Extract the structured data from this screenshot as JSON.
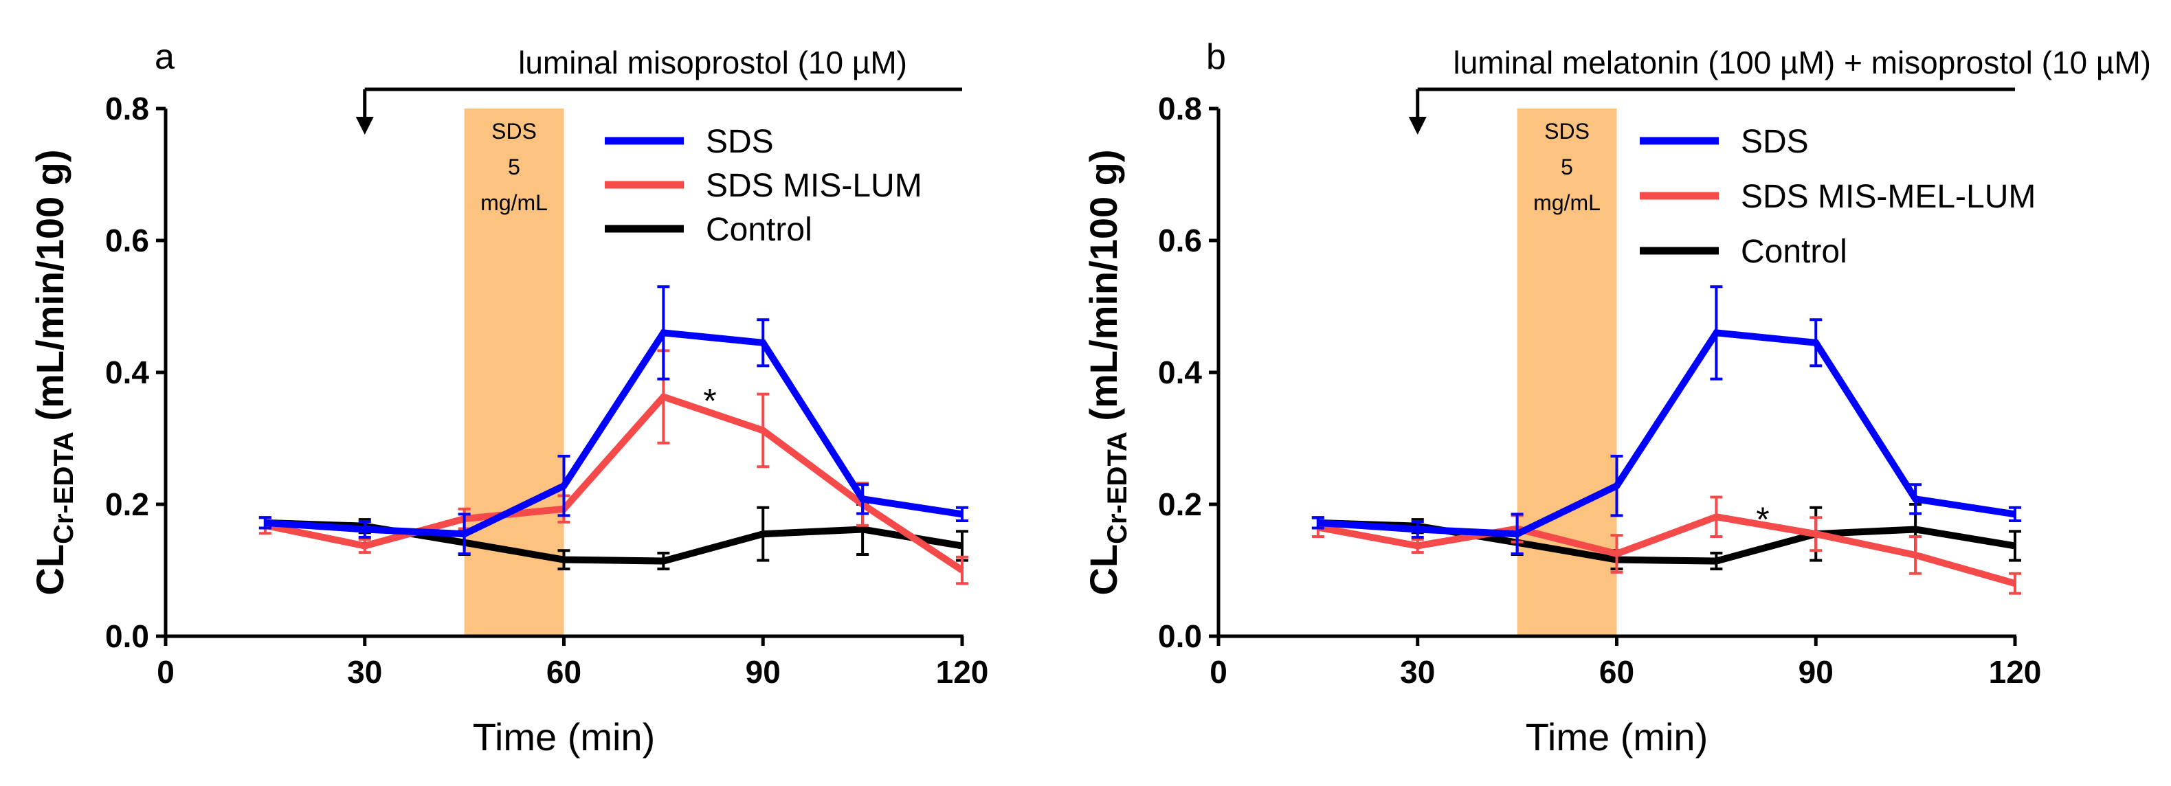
{
  "colors": {
    "sds": "#0000ff",
    "treated": "#f54a4a",
    "control": "#000000",
    "shade": "#fcc27f"
  },
  "chart_data": [
    {
      "type": "line",
      "panel": "a",
      "annotation_arrow": "luminal misoprostol (10 µM)",
      "shaded_label": [
        "SDS",
        "5",
        "mg/mL"
      ],
      "xlabel": "Time (min)",
      "ylabel_main": "CL",
      "ylabel_sub": "Cr-EDTA",
      "ylabel_unit": " (mL/min/100 g)",
      "xlim": [
        0,
        120
      ],
      "ylim": [
        0,
        0.8
      ],
      "xticks": [
        0,
        30,
        60,
        90,
        120
      ],
      "yticks": [
        "0.0",
        "0.2",
        "0.4",
        "0.6",
        "0.8"
      ],
      "x": [
        15,
        30,
        45,
        60,
        75,
        90,
        105,
        120
      ],
      "series": [
        {
          "name": "SDS",
          "color": "#0000ff",
          "values": [
            0.172,
            0.162,
            0.155,
            0.228,
            0.46,
            0.445,
            0.208,
            0.185
          ],
          "errors": [
            0.008,
            0.012,
            0.03,
            0.045,
            0.07,
            0.035,
            0.022,
            0.01
          ]
        },
        {
          "name": "SDS MIS-LUM",
          "color": "#f54a4a",
          "values": [
            0.168,
            0.137,
            0.178,
            0.193,
            0.363,
            0.312,
            0.2,
            0.1
          ],
          "errors": [
            0.012,
            0.01,
            0.015,
            0.02,
            0.07,
            0.055,
            0.032,
            0.02
          ]
        },
        {
          "name": "Control",
          "color": "#000000",
          "values": [
            0.172,
            0.167,
            0.142,
            0.116,
            0.114,
            0.155,
            0.162,
            0.137
          ],
          "errors": [
            0.008,
            0.01,
            0.018,
            0.014,
            0.012,
            0.04,
            0.038,
            0.022
          ]
        }
      ],
      "star_label": "*",
      "star_at": [
        82,
        0.36
      ],
      "arrow_x": 30,
      "arrow_end_x": 120
    },
    {
      "type": "line",
      "panel": "b",
      "annotation_arrow": "luminal melatonin (100 µM) + misoprostol (10 µM)",
      "shaded_label": [
        "SDS",
        "5",
        "mg/mL"
      ],
      "xlabel": "Time (min)",
      "ylabel_main": "CL",
      "ylabel_sub": "Cr-EDTA",
      "ylabel_unit": " (mL/min/100 g)",
      "xlim": [
        0,
        120
      ],
      "ylim": [
        0,
        0.8
      ],
      "xticks": [
        0,
        30,
        60,
        90,
        120
      ],
      "yticks": [
        "0.0",
        "0.2",
        "0.4",
        "0.6",
        "0.8"
      ],
      "x": [
        15,
        30,
        45,
        60,
        75,
        90,
        105,
        120
      ],
      "series": [
        {
          "name": "SDS",
          "color": "#0000ff",
          "values": [
            0.172,
            0.162,
            0.155,
            0.228,
            0.46,
            0.445,
            0.208,
            0.185
          ],
          "errors": [
            0.008,
            0.012,
            0.03,
            0.045,
            0.07,
            0.035,
            0.022,
            0.01
          ]
        },
        {
          "name": "SDS MIS-MEL-LUM",
          "color": "#f54a4a",
          "values": [
            0.165,
            0.137,
            0.163,
            0.125,
            0.181,
            0.155,
            0.123,
            0.08
          ],
          "errors": [
            0.014,
            0.01,
            0.02,
            0.028,
            0.03,
            0.025,
            0.028,
            0.015
          ]
        },
        {
          "name": "Control",
          "color": "#000000",
          "values": [
            0.172,
            0.167,
            0.142,
            0.116,
            0.114,
            0.155,
            0.162,
            0.137
          ],
          "errors": [
            0.008,
            0.01,
            0.018,
            0.014,
            0.012,
            0.04,
            0.038,
            0.022
          ]
        }
      ],
      "star_label": "*",
      "star_at": [
        82,
        0.18
      ],
      "arrow_x": 30,
      "arrow_end_x": 120
    }
  ]
}
